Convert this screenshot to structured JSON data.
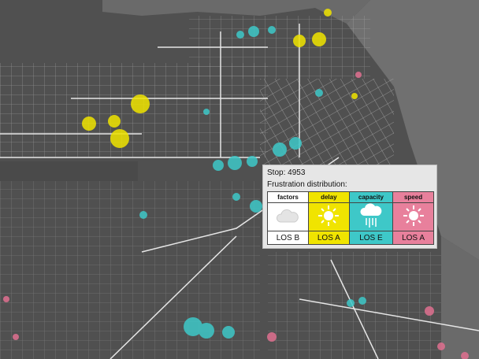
{
  "tooltip": {
    "title": "Stop: 4953",
    "subtitle": "Frustration distribution:",
    "table": {
      "header": [
        "factors",
        "delay",
        "capacity",
        "speed"
      ],
      "levels": [
        "LOS B",
        "LOS A",
        "LOS E",
        "LOS A"
      ]
    }
  }
}
